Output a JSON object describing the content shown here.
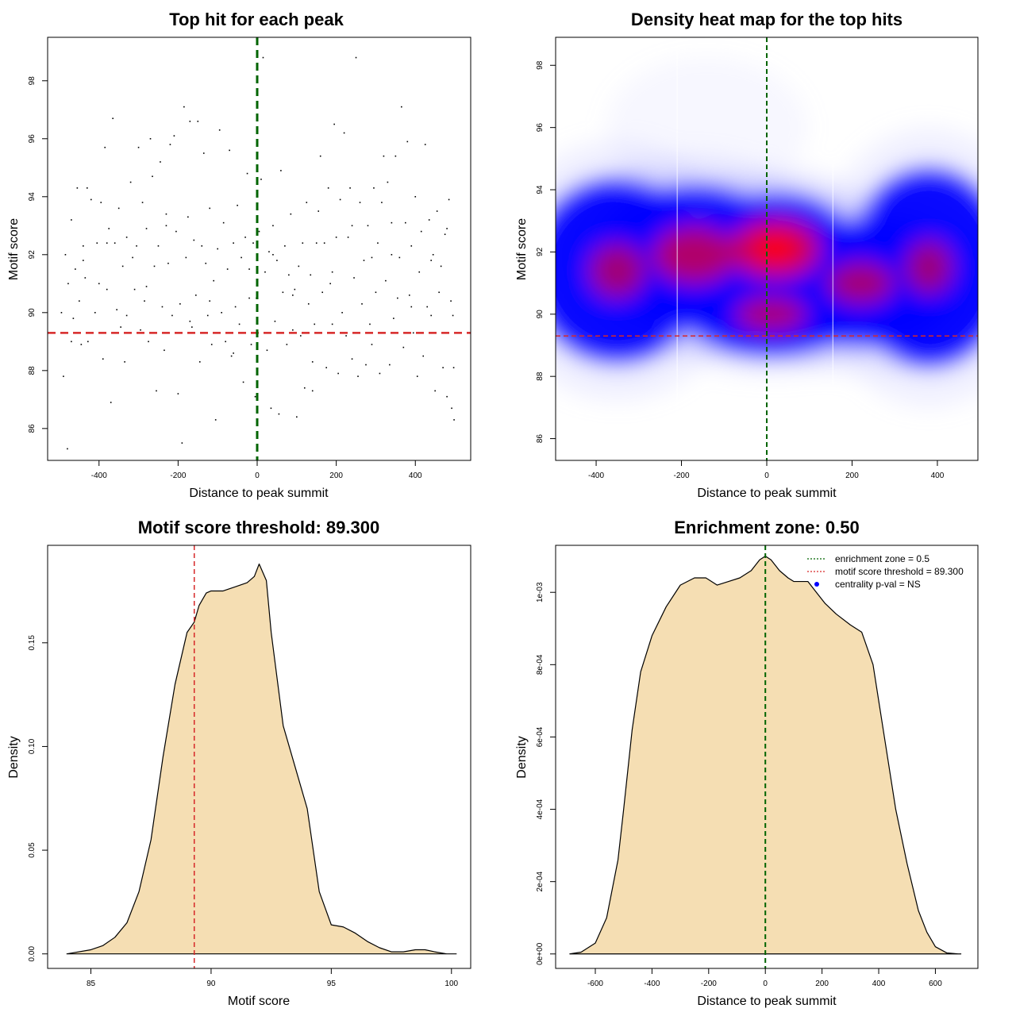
{
  "chart_data": [
    {
      "id": "p1",
      "type": "scatter",
      "title": "Top hit for each peak",
      "xlabel": "Distance to peak summit",
      "ylabel": "Motif score",
      "xlim": [
        -530,
        540
      ],
      "ylim": [
        84.9,
        99.5
      ],
      "xticks": [
        -400,
        -200,
        0,
        200,
        400
      ],
      "xtick_labels": [
        "-400",
        "-200",
        "0",
        "200",
        "400"
      ],
      "yticks": [
        86,
        88,
        90,
        92,
        94,
        96,
        98
      ],
      "ytick_labels": [
        "86",
        "88",
        "90",
        "92",
        "94",
        "96",
        "98"
      ],
      "points": [
        [
          -495,
          90.0
        ],
        [
          -490,
          87.8
        ],
        [
          -485,
          92.0
        ],
        [
          -480,
          85.3
        ],
        [
          -478,
          91.0
        ],
        [
          -470,
          93.2
        ],
        [
          -465,
          89.8
        ],
        [
          -460,
          91.5
        ],
        [
          -455,
          94.3
        ],
        [
          -450,
          90.4
        ],
        [
          -445,
          88.9
        ],
        [
          -440,
          92.3
        ],
        [
          -435,
          91.2
        ],
        [
          -430,
          94.3
        ],
        [
          -428,
          89.0
        ],
        [
          -420,
          93.9
        ],
        [
          -410,
          90.0
        ],
        [
          -405,
          92.4
        ],
        [
          -400,
          91.0
        ],
        [
          -395,
          93.8
        ],
        [
          -390,
          88.4
        ],
        [
          -385,
          95.7
        ],
        [
          -380,
          90.8
        ],
        [
          -375,
          92.9
        ],
        [
          -370,
          86.9
        ],
        [
          -365,
          96.7
        ],
        [
          -360,
          92.4
        ],
        [
          -355,
          90.1
        ],
        [
          -350,
          93.6
        ],
        [
          -345,
          89.5
        ],
        [
          -340,
          91.6
        ],
        [
          -335,
          88.3
        ],
        [
          -330,
          92.6
        ],
        [
          -320,
          94.5
        ],
        [
          -315,
          91.9
        ],
        [
          -310,
          90.8
        ],
        [
          -305,
          92.3
        ],
        [
          -300,
          95.7
        ],
        [
          -295,
          89.4
        ],
        [
          -290,
          93.8
        ],
        [
          -285,
          90.4
        ],
        [
          -280,
          92.9
        ],
        [
          -275,
          89.0
        ],
        [
          -270,
          96.0
        ],
        [
          -265,
          94.7
        ],
        [
          -260,
          91.6
        ],
        [
          -255,
          87.3
        ],
        [
          -250,
          92.3
        ],
        [
          -245,
          95.2
        ],
        [
          -240,
          90.2
        ],
        [
          -235,
          88.7
        ],
        [
          -230,
          93.4
        ],
        [
          -225,
          91.7
        ],
        [
          -220,
          95.8
        ],
        [
          -215,
          89.9
        ],
        [
          -210,
          96.1
        ],
        [
          -205,
          92.8
        ],
        [
          -200,
          87.2
        ],
        [
          -195,
          90.3
        ],
        [
          -190,
          85.5
        ],
        [
          -185,
          97.1
        ],
        [
          -180,
          91.9
        ],
        [
          -175,
          93.3
        ],
        [
          -170,
          96.6
        ],
        [
          -165,
          89.5
        ],
        [
          -160,
          92.5
        ],
        [
          -155,
          90.6
        ],
        [
          -150,
          96.6
        ],
        [
          -145,
          88.3
        ],
        [
          -140,
          92.3
        ],
        [
          -135,
          95.5
        ],
        [
          -130,
          91.7
        ],
        [
          -125,
          89.9
        ],
        [
          -120,
          93.6
        ],
        [
          -115,
          88.9
        ],
        [
          -110,
          91.1
        ],
        [
          -105,
          86.3
        ],
        [
          -100,
          92.2
        ],
        [
          -95,
          96.3
        ],
        [
          -90,
          90.0
        ],
        [
          -85,
          93.1
        ],
        [
          -80,
          89.0
        ],
        [
          -75,
          91.5
        ],
        [
          -70,
          95.6
        ],
        [
          -65,
          88.5
        ],
        [
          -60,
          92.4
        ],
        [
          -55,
          90.2
        ],
        [
          -50,
          93.7
        ],
        [
          -45,
          89.6
        ],
        [
          -40,
          91.9
        ],
        [
          -35,
          87.6
        ],
        [
          -30,
          92.6
        ],
        [
          -25,
          94.8
        ],
        [
          -20,
          90.5
        ],
        [
          -15,
          88.9
        ],
        [
          -10,
          92.4
        ],
        [
          -5,
          87.1
        ],
        [
          -2,
          90.5
        ],
        [
          5,
          92.8
        ],
        [
          10,
          94.6
        ],
        [
          15,
          98.8
        ],
        [
          20,
          91.4
        ],
        [
          25,
          88.7
        ],
        [
          30,
          92.1
        ],
        [
          35,
          86.7
        ],
        [
          40,
          93.0
        ],
        [
          45,
          89.7
        ],
        [
          50,
          91.8
        ],
        [
          55,
          86.5
        ],
        [
          60,
          94.9
        ],
        [
          65,
          90.7
        ],
        [
          70,
          92.3
        ],
        [
          75,
          88.9
        ],
        [
          80,
          91.3
        ],
        [
          85,
          93.4
        ],
        [
          90,
          89.4
        ],
        [
          95,
          90.8
        ],
        [
          100,
          86.4
        ],
        [
          105,
          91.6
        ],
        [
          110,
          89.2
        ],
        [
          115,
          92.4
        ],
        [
          120,
          87.4
        ],
        [
          125,
          93.8
        ],
        [
          130,
          90.3
        ],
        [
          135,
          91.3
        ],
        [
          140,
          87.3
        ],
        [
          145,
          89.6
        ],
        [
          150,
          92.4
        ],
        [
          155,
          93.5
        ],
        [
          160,
          95.4
        ],
        [
          165,
          90.7
        ],
        [
          170,
          92.4
        ],
        [
          175,
          88.1
        ],
        [
          180,
          94.3
        ],
        [
          185,
          91.0
        ],
        [
          190,
          89.6
        ],
        [
          195,
          96.5
        ],
        [
          200,
          92.6
        ],
        [
          205,
          87.9
        ],
        [
          210,
          93.9
        ],
        [
          215,
          90.0
        ],
        [
          220,
          96.2
        ],
        [
          225,
          89.2
        ],
        [
          230,
          92.6
        ],
        [
          235,
          94.3
        ],
        [
          240,
          88.4
        ],
        [
          245,
          91.2
        ],
        [
          250,
          98.8
        ],
        [
          255,
          87.8
        ],
        [
          260,
          93.8
        ],
        [
          265,
          90.3
        ],
        [
          270,
          91.8
        ],
        [
          275,
          88.2
        ],
        [
          280,
          93.0
        ],
        [
          285,
          89.6
        ],
        [
          290,
          91.9
        ],
        [
          295,
          94.3
        ],
        [
          300,
          90.7
        ],
        [
          305,
          92.4
        ],
        [
          310,
          87.9
        ],
        [
          315,
          93.8
        ],
        [
          320,
          95.4
        ],
        [
          325,
          91.1
        ],
        [
          330,
          94.5
        ],
        [
          335,
          88.2
        ],
        [
          340,
          92.0
        ],
        [
          345,
          89.8
        ],
        [
          350,
          95.4
        ],
        [
          355,
          90.5
        ],
        [
          360,
          91.9
        ],
        [
          365,
          97.1
        ],
        [
          370,
          88.8
        ],
        [
          375,
          93.1
        ],
        [
          380,
          95.9
        ],
        [
          385,
          90.6
        ],
        [
          390,
          92.3
        ],
        [
          395,
          89.3
        ],
        [
          400,
          94.0
        ],
        [
          405,
          87.8
        ],
        [
          410,
          91.4
        ],
        [
          415,
          92.8
        ],
        [
          420,
          88.5
        ],
        [
          425,
          95.8
        ],
        [
          430,
          90.2
        ],
        [
          435,
          93.2
        ],
        [
          440,
          89.9
        ],
        [
          445,
          92.0
        ],
        [
          450,
          87.3
        ],
        [
          455,
          93.5
        ],
        [
          460,
          90.7
        ],
        [
          465,
          91.6
        ],
        [
          470,
          88.1
        ],
        [
          475,
          92.7
        ],
        [
          480,
          87.1
        ],
        [
          485,
          93.9
        ],
        [
          490,
          90.4
        ],
        [
          492,
          86.7
        ],
        [
          495,
          89.9
        ],
        [
          497,
          88.1
        ],
        [
          498,
          86.3
        ],
        [
          -470,
          89.0
        ],
        [
          -440,
          91.8
        ],
        [
          -380,
          92.4
        ],
        [
          -330,
          89.9
        ],
        [
          -280,
          90.9
        ],
        [
          -230,
          93.0
        ],
        [
          -170,
          89.7
        ],
        [
          -120,
          90.4
        ],
        [
          -60,
          88.6
        ],
        [
          -20,
          91.5
        ],
        [
          40,
          92.0
        ],
        [
          90,
          90.6
        ],
        [
          140,
          88.3
        ],
        [
          190,
          91.4
        ],
        [
          240,
          93.0
        ],
        [
          290,
          88.9
        ],
        [
          340,
          93.1
        ],
        [
          390,
          90.2
        ],
        [
          440,
          91.8
        ],
        [
          480,
          92.9
        ]
      ],
      "hline": 89.3,
      "vline": 0
    },
    {
      "id": "p2",
      "type": "heatmap",
      "title": "Density heat map for the top hits",
      "xlabel": "Distance to peak summit",
      "ylabel": "Motif score",
      "xlim": [
        -495,
        495
      ],
      "ylim": [
        85.3,
        98.9
      ],
      "xticks": [
        -400,
        -200,
        0,
        200,
        400
      ],
      "xtick_labels": [
        "-400",
        "-200",
        "0",
        "200",
        "400"
      ],
      "yticks": [
        86,
        88,
        90,
        92,
        94,
        96,
        98
      ],
      "ytick_labels": [
        "86",
        "88",
        "90",
        "92",
        "94",
        "96",
        "98"
      ],
      "density_centers": [
        {
          "x": 20,
          "y": 92.1,
          "weight": 1.0,
          "sx": 100,
          "sy": 0.8
        },
        {
          "x": -170,
          "y": 91.9,
          "weight": 0.75,
          "sx": 120,
          "sy": 1.0
        },
        {
          "x": 10,
          "y": 90.0,
          "weight": 0.7,
          "sx": 110,
          "sy": 0.6
        },
        {
          "x": 220,
          "y": 91.0,
          "weight": 0.6,
          "sx": 120,
          "sy": 0.9
        },
        {
          "x": -350,
          "y": 91.4,
          "weight": 0.55,
          "sx": 110,
          "sy": 1.3
        },
        {
          "x": 380,
          "y": 91.5,
          "weight": 0.5,
          "sx": 100,
          "sy": 1.4
        },
        {
          "x": -140,
          "y": 96.0,
          "weight": 0.12,
          "sx": 90,
          "sy": 0.7
        }
      ],
      "hline": 89.3,
      "vline": 0
    },
    {
      "id": "p3",
      "type": "area",
      "title": "Motif score threshold: 89.300",
      "xlabel": "Motif score",
      "ylabel": "Density",
      "xlim": [
        83.2,
        100.8
      ],
      "ylim": [
        -0.007,
        0.197
      ],
      "xticks": [
        85,
        90,
        95,
        100
      ],
      "xtick_labels": [
        "85",
        "90",
        "95",
        "100"
      ],
      "yticks": [
        0.0,
        0.05,
        0.1,
        0.15
      ],
      "ytick_labels": [
        "0.00",
        "0.05",
        "0.10",
        "0.15"
      ],
      "x": [
        84.0,
        85.0,
        85.5,
        86.0,
        86.5,
        87.0,
        87.5,
        88.0,
        88.5,
        89.0,
        89.3,
        89.5,
        89.8,
        90.0,
        90.5,
        91.0,
        91.5,
        91.8,
        92.0,
        92.3,
        92.5,
        93.0,
        93.5,
        94.0,
        94.5,
        95.0,
        95.5,
        96.0,
        96.5,
        97.0,
        97.5,
        98.0,
        98.5,
        98.9,
        99.3,
        99.8,
        100.2
      ],
      "y": [
        0.0,
        0.002,
        0.004,
        0.008,
        0.015,
        0.03,
        0.055,
        0.095,
        0.13,
        0.155,
        0.16,
        0.168,
        0.174,
        0.175,
        0.175,
        0.177,
        0.179,
        0.182,
        0.188,
        0.18,
        0.155,
        0.11,
        0.09,
        0.07,
        0.03,
        0.014,
        0.013,
        0.01,
        0.006,
        0.003,
        0.001,
        0.001,
        0.002,
        0.002,
        0.001,
        0.0,
        0.0
      ],
      "vline": 89.3
    },
    {
      "id": "p4",
      "type": "area",
      "title": "Enrichment zone: 0.50",
      "xlabel": "Distance to peak summit",
      "ylabel": "Density",
      "xlim": [
        -740,
        750
      ],
      "ylim": [
        -4e-05,
        0.00113
      ],
      "xticks": [
        -600,
        -400,
        -200,
        0,
        200,
        400,
        600
      ],
      "xtick_labels": [
        "-600",
        "-400",
        "-200",
        "0",
        "200",
        "400",
        "600"
      ],
      "yticks": [
        0,
        0.0002,
        0.0004,
        0.0006,
        0.0008,
        0.001
      ],
      "ytick_labels": [
        "0e+00",
        "2e-04",
        "4e-04",
        "6e-04",
        "8e-04",
        "1e-03"
      ],
      "x": [
        -690,
        -650,
        -600,
        -560,
        -520,
        -500,
        -470,
        -440,
        -400,
        -350,
        -300,
        -250,
        -210,
        -170,
        -130,
        -90,
        -50,
        -20,
        0,
        20,
        50,
        80,
        100,
        130,
        150,
        180,
        210,
        250,
        300,
        340,
        380,
        420,
        460,
        500,
        540,
        570,
        600,
        640,
        680,
        690
      ],
      "y": [
        0,
        5e-06,
        3e-05,
        0.0001,
        0.00026,
        0.0004,
        0.00062,
        0.00078,
        0.00088,
        0.00096,
        0.00102,
        0.00104,
        0.00104,
        0.00102,
        0.00103,
        0.00104,
        0.00106,
        0.00109,
        0.0011,
        0.00109,
        0.00106,
        0.00104,
        0.00103,
        0.00103,
        0.00103,
        0.001,
        0.00097,
        0.00094,
        0.00091,
        0.00089,
        0.0008,
        0.0006,
        0.0004,
        0.00025,
        0.00012,
        6e-05,
        2e-05,
        3e-06,
        0.0,
        0.0
      ],
      "vline": 0,
      "legend": [
        {
          "label": "enrichment zone = 0.5",
          "color": "#006400",
          "style": "dotted-line"
        },
        {
          "label": "motif score threshold = 89.300",
          "color": "#d62728",
          "style": "dotted-line"
        },
        {
          "label": "centrality p-val = NS",
          "color": "#0000ff",
          "style": "dot"
        }
      ],
      "legend_position": "top-right"
    }
  ],
  "colors": {
    "fill": "#f5deb3",
    "threshold": "#d62728",
    "center": "#006400",
    "heat_low": "#ffffff",
    "heat_mid": "#0000ff",
    "heat_high": "#ff0000"
  }
}
